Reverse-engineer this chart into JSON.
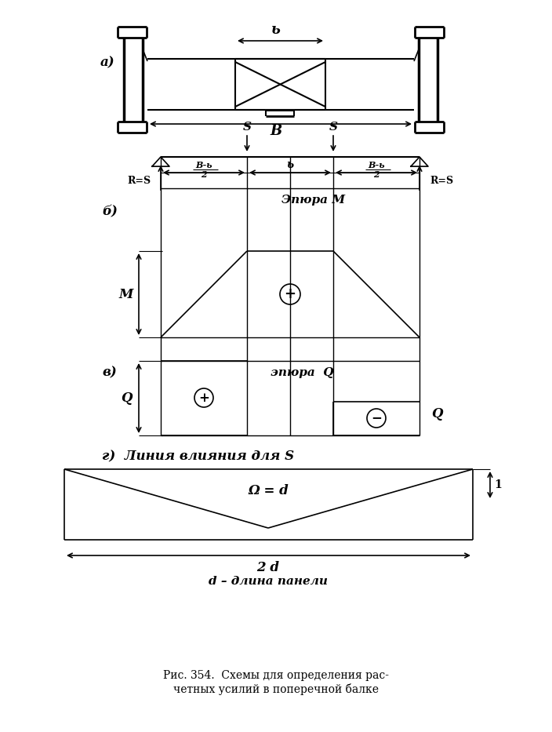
{
  "bg_color": "#ffffff",
  "line_color": "#000000",
  "fig_width": 7.04,
  "fig_height": 9.33,
  "label_a": "а)",
  "label_b": "б)",
  "label_v": "в)",
  "label_g": "г)  Линия влияния для S",
  "label_caption": "Рис. 354.  Схемы для определения рас-\nчетных усилий в поперечной балке",
  "dim_b_small": "ь",
  "dim_B": "B",
  "label_RS_left": "R=S",
  "label_RS_right": "R=S",
  "label_S_left": "S",
  "label_S_right": "S",
  "label_epM": "Эпюра М",
  "label_M": "M",
  "label_plus1": "+",
  "label_epQ": "эпюра  Q",
  "label_Q_left": "Q",
  "label_Q_right": "Q",
  "label_plus2": "+",
  "label_minus": "−",
  "label_omega": "Ω = d",
  "label_2d": "2 d",
  "label_d_panel": "d – длина панели",
  "label_1": "1"
}
